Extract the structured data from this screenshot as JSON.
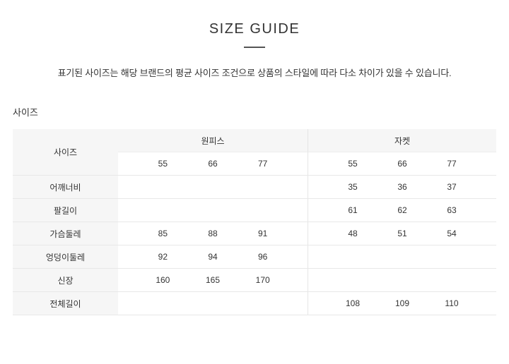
{
  "header": {
    "title": "SIZE GUIDE",
    "description": "표기된 사이즈는 해당 브랜드의 평균 사이즈 조건으로 상품의 스타일에 따라 다소 차이가 있을 수 있습니다."
  },
  "section": {
    "label": "사이즈"
  },
  "table": {
    "corner_label": "사이즈",
    "groups": [
      {
        "label": "원피스",
        "sizes": [
          "55",
          "66",
          "77"
        ]
      },
      {
        "label": "자켓",
        "sizes": [
          "55",
          "66",
          "77"
        ]
      }
    ],
    "rows": [
      {
        "label": "어깨너비",
        "onepiece": [
          "",
          "",
          ""
        ],
        "jacket": [
          "35",
          "36",
          "37"
        ]
      },
      {
        "label": "팔길이",
        "onepiece": [
          "",
          "",
          ""
        ],
        "jacket": [
          "61",
          "62",
          "63"
        ]
      },
      {
        "label": "가슴둘레",
        "onepiece": [
          "85",
          "88",
          "91"
        ],
        "jacket": [
          "48",
          "51",
          "54"
        ]
      },
      {
        "label": "엉덩이둘레",
        "onepiece": [
          "92",
          "94",
          "96"
        ],
        "jacket": [
          "",
          "",
          ""
        ]
      },
      {
        "label": "신장",
        "onepiece": [
          "160",
          "165",
          "170"
        ],
        "jacket": [
          "",
          "",
          ""
        ]
      },
      {
        "label": "전체길이",
        "onepiece": [
          "",
          "",
          ""
        ],
        "jacket": [
          "108",
          "109",
          "110"
        ]
      }
    ],
    "colors": {
      "header_bg": "#f6f6f6",
      "row_border": "#e8e8e8",
      "group_divider": "#e5e5e5",
      "title_divider_bar": "#555555",
      "text": "#333333"
    }
  }
}
